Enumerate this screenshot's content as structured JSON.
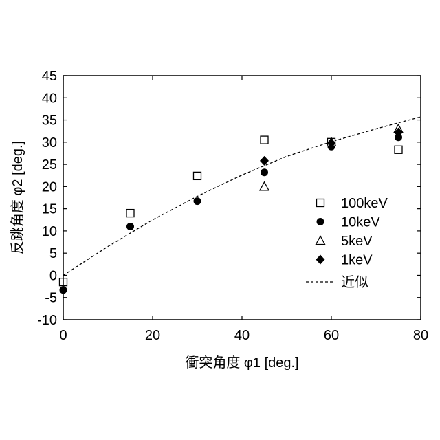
{
  "chart_data": {
    "type": "scatter",
    "xlabel": "衝突角度 φ1 [deg.]",
    "ylabel": "反跳角度 φ2 [deg.]",
    "xlim": [
      0,
      80
    ],
    "ylim": [
      -10,
      45
    ],
    "x_ticks": [
      0,
      20,
      40,
      60,
      80
    ],
    "y_ticks": [
      -10,
      -5,
      0,
      5,
      10,
      15,
      20,
      25,
      30,
      35,
      40,
      45
    ],
    "grid": false,
    "legend_position": "right",
    "series": [
      {
        "name": "100keV",
        "marker": "open-square",
        "color": "#000000",
        "x": [
          0,
          15,
          30,
          45,
          60,
          75
        ],
        "y": [
          -1.5,
          14,
          22.4,
          30.5,
          30,
          28.3
        ]
      },
      {
        "name": "10keV",
        "marker": "filled-circle",
        "color": "#000000",
        "x": [
          0,
          15,
          30,
          45,
          60,
          75
        ],
        "y": [
          -3.3,
          11,
          16.7,
          23.2,
          29,
          31.1
        ]
      },
      {
        "name": "5keV",
        "marker": "open-triangle",
        "color": "#000000",
        "x": [
          45,
          60,
          75
        ],
        "y": [
          20,
          30,
          33
        ]
      },
      {
        "name": "1keV",
        "marker": "filled-diamond",
        "color": "#000000",
        "x": [
          45,
          60,
          75
        ],
        "y": [
          25.8,
          29.8,
          32.2
        ]
      },
      {
        "name": "近似",
        "marker": "dashed-line",
        "color": "#000000",
        "x": [
          0,
          10,
          20,
          30,
          40,
          50,
          60,
          70,
          80
        ],
        "y": [
          0,
          6.5,
          12.5,
          17.8,
          22.6,
          26.8,
          30.1,
          33.0,
          35.7
        ]
      }
    ]
  }
}
